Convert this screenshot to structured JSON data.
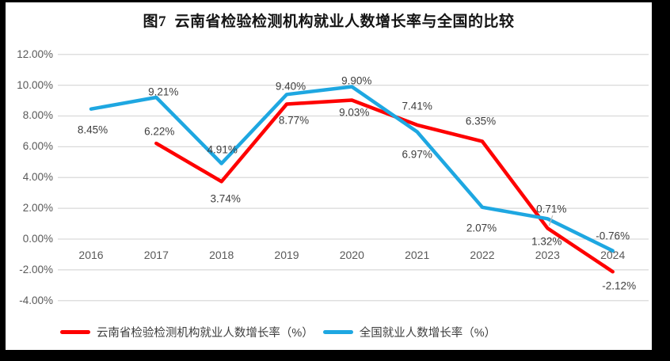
{
  "chart_data": {
    "type": "line",
    "title": "图7  云南省检验检测机构就业人数增长率与全国的比较",
    "categories": [
      "2016",
      "2017",
      "2018",
      "2019",
      "2020",
      "2021",
      "2022",
      "2023",
      "2024"
    ],
    "series": [
      {
        "name": "云南省检验检测机构就业人数增长率（%）",
        "color": "#FE0000",
        "values": [
          null,
          6.22,
          3.74,
          8.77,
          9.03,
          7.41,
          6.35,
          0.71,
          -2.12
        ],
        "point_labels": [
          null,
          "6.22%",
          "3.74%",
          "8.77%",
          "9.03%",
          "7.41%",
          "6.35%",
          "0.71%",
          "-2.12%"
        ]
      },
      {
        "name": "全国就业人数增长率（%）",
        "color": "#1EA7E1",
        "values": [
          8.45,
          9.21,
          4.91,
          9.4,
          9.9,
          6.97,
          2.07,
          1.32,
          -0.76
        ],
        "point_labels": [
          "8.45%",
          "9.21%",
          "4.91%",
          "9.40%",
          "9.90%",
          "6.97%",
          "2.07%",
          "1.32%",
          "-0.76%"
        ]
      }
    ],
    "y_tick_labels": [
      "12.00%",
      "10.00%",
      "8.00%",
      "6.00%",
      "4.00%",
      "2.00%",
      "0.00%",
      "-2.00%",
      "-4.00%"
    ],
    "y_tick_values": [
      12,
      10,
      8,
      6,
      4,
      2,
      0,
      -2,
      -4
    ],
    "ylim": [
      -4,
      12
    ],
    "grid": true,
    "legend_position": "bottom",
    "xlabel": "",
    "ylabel": ""
  },
  "colors": {
    "grid": "#D9D9D9",
    "axis_text": "#595959",
    "data_label_text": "#3D3D3D",
    "frame": "#000000",
    "panel": "#FFFFFF",
    "leader_line": "#BFBFBF"
  }
}
